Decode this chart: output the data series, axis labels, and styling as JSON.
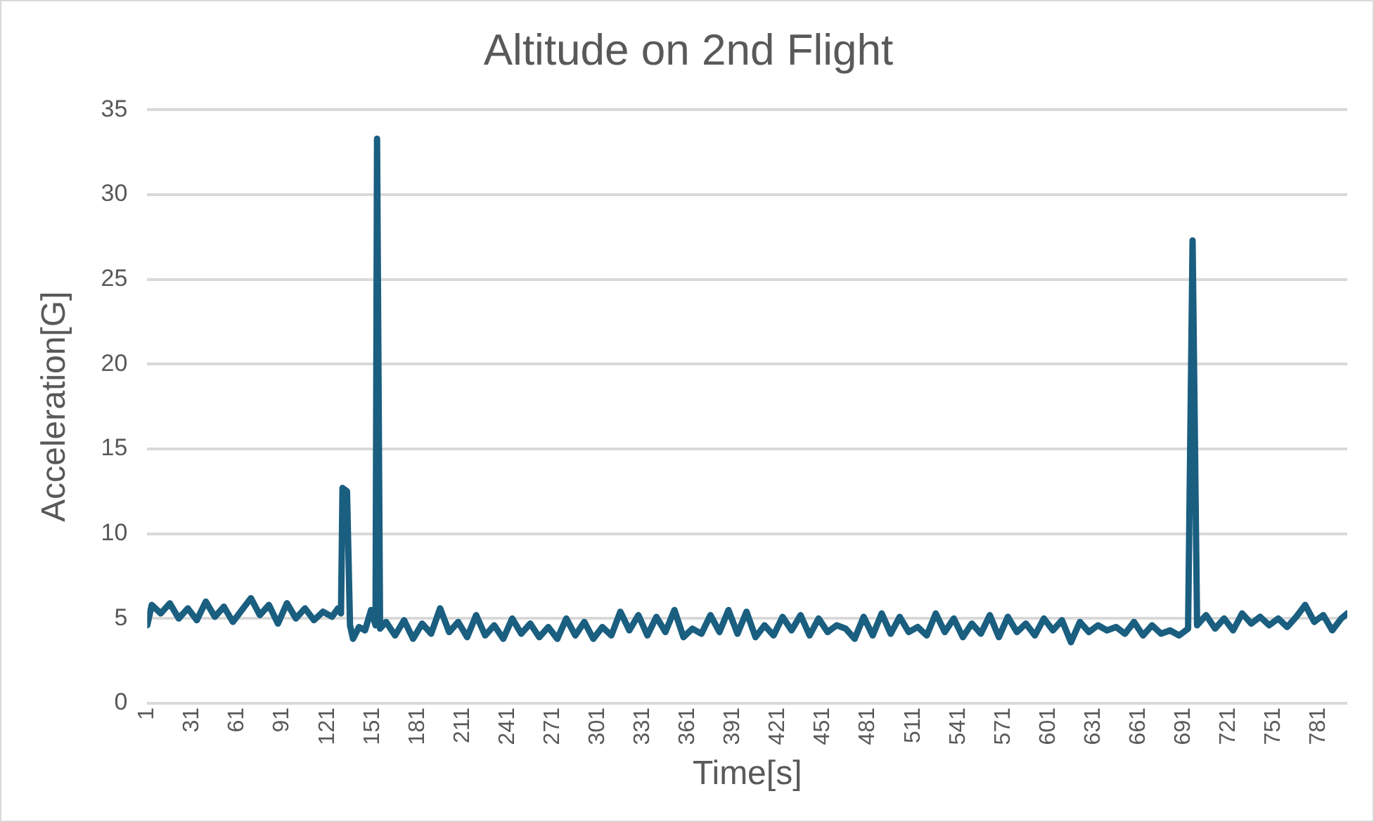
{
  "chart_data": {
    "type": "line",
    "title": "Altitude on 2nd Flight",
    "xlabel": "Time[s]",
    "ylabel": "Acceleration[G]",
    "x": [
      1,
      4,
      10,
      16,
      22,
      28,
      34,
      40,
      46,
      52,
      58,
      64,
      70,
      76,
      82,
      88,
      94,
      100,
      106,
      112,
      118,
      124,
      128,
      130,
      131,
      134,
      136,
      138,
      142,
      146,
      150,
      153,
      154,
      156,
      160,
      166,
      172,
      178,
      184,
      190,
      196,
      202,
      208,
      214,
      220,
      226,
      232,
      238,
      244,
      250,
      256,
      262,
      268,
      274,
      280,
      286,
      292,
      298,
      304,
      310,
      316,
      322,
      328,
      334,
      340,
      346,
      352,
      358,
      364,
      370,
      376,
      382,
      388,
      394,
      400,
      406,
      412,
      418,
      424,
      430,
      436,
      442,
      448,
      454,
      460,
      466,
      472,
      478,
      484,
      490,
      496,
      502,
      508,
      514,
      520,
      526,
      532,
      538,
      544,
      550,
      556,
      562,
      568,
      574,
      580,
      586,
      592,
      598,
      604,
      610,
      616,
      622,
      628,
      634,
      640,
      646,
      652,
      658,
      664,
      670,
      676,
      682,
      688,
      694,
      697,
      700,
      706,
      712,
      718,
      724,
      730,
      736,
      742,
      748,
      754,
      760,
      766,
      772,
      778,
      784,
      790,
      796,
      800
    ],
    "series": [
      {
        "color": "#1a5e80",
        "values": [
          4.6,
          5.8,
          5.3,
          5.9,
          5.0,
          5.6,
          4.9,
          6.0,
          5.1,
          5.7,
          4.8,
          5.5,
          6.2,
          5.2,
          5.8,
          4.7,
          5.9,
          5.0,
          5.6,
          4.9,
          5.4,
          5.1,
          5.6,
          5.3,
          12.7,
          12.5,
          4.6,
          3.8,
          4.5,
          4.3,
          5.5,
          4.6,
          33.3,
          4.4,
          4.8,
          4.0,
          4.9,
          3.8,
          4.7,
          4.1,
          5.6,
          4.2,
          4.8,
          3.9,
          5.2,
          4.0,
          4.6,
          3.8,
          5.0,
          4.1,
          4.7,
          3.9,
          4.5,
          3.8,
          5.0,
          4.0,
          4.8,
          3.8,
          4.5,
          4.0,
          5.4,
          4.3,
          5.2,
          4.0,
          5.1,
          4.2,
          5.5,
          3.9,
          4.4,
          4.1,
          5.2,
          4.2,
          5.5,
          4.1,
          5.4,
          3.9,
          4.6,
          4.0,
          5.1,
          4.3,
          5.2,
          4.0,
          5.0,
          4.2,
          4.6,
          4.4,
          3.8,
          5.1,
          4.0,
          5.3,
          4.1,
          5.1,
          4.2,
          4.5,
          4.0,
          5.3,
          4.2,
          5.0,
          3.9,
          4.7,
          4.1,
          5.2,
          3.9,
          5.1,
          4.2,
          4.7,
          4.0,
          5.0,
          4.3,
          4.9,
          3.6,
          4.8,
          4.2,
          4.6,
          4.3,
          4.5,
          4.1,
          4.8,
          4.0,
          4.6,
          4.1,
          4.3,
          4.0,
          4.4,
          27.3,
          4.6,
          5.2,
          4.4,
          5.0,
          4.3,
          5.3,
          4.7,
          5.1,
          4.6,
          5.0,
          4.5,
          5.1,
          5.8,
          4.8,
          5.2,
          4.3,
          5.0,
          5.3
        ]
      }
    ],
    "xlim": [
      1,
      800
    ],
    "xticks": [
      1,
      31,
      61,
      91,
      121,
      151,
      181,
      211,
      241,
      271,
      301,
      331,
      361,
      391,
      421,
      451,
      481,
      511,
      541,
      571,
      601,
      631,
      661,
      691,
      721,
      751,
      781
    ],
    "ylim": [
      0,
      35
    ],
    "yticks": [
      0,
      5,
      10,
      15,
      20,
      25,
      30,
      35
    ],
    "grid": "y",
    "marker": "none",
    "line_style": "solid",
    "legend": false
  }
}
